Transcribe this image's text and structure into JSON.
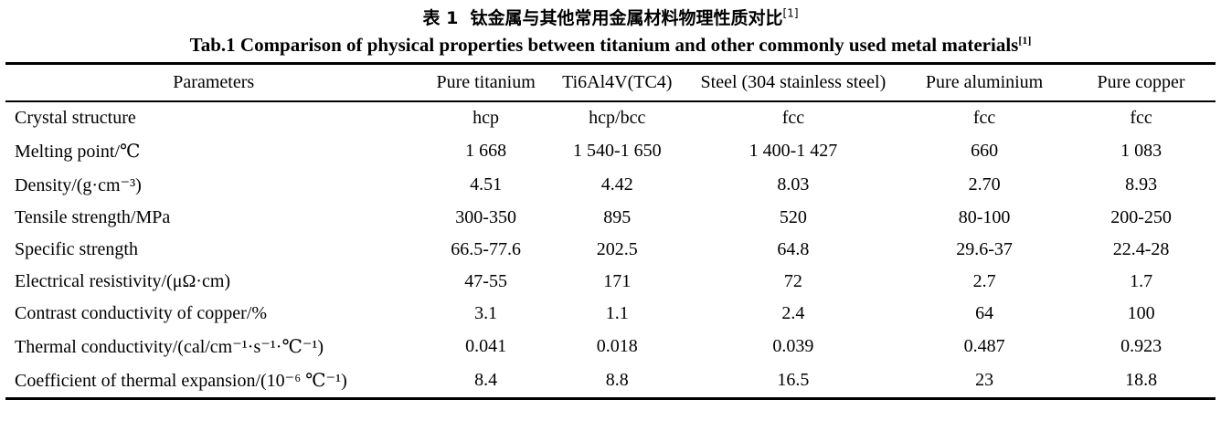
{
  "caption": {
    "zh": "表 1  钛金属与其他常用金属材料物理性质对比",
    "zh_ref": "[1]",
    "en": "Tab.1 Comparison of physical properties between titanium and other commonly used metal materials",
    "en_ref": "[1]"
  },
  "table": {
    "columns": [
      "Parameters",
      "Pure titanium",
      "Ti6Al4V(TC4)",
      "Steel (304 stainless steel)",
      "Pure aluminium",
      "Pure copper"
    ],
    "rows": [
      {
        "parameter": "Crystal structure",
        "values": [
          "hcp",
          "hcp/bcc",
          "fcc",
          "fcc",
          "fcc"
        ]
      },
      {
        "parameter": "Melting point/℃",
        "values": [
          "1 668",
          "1 540-1 650",
          "1 400-1 427",
          "660",
          "1 083"
        ]
      },
      {
        "parameter": "Density/(g·cm⁻³)",
        "values": [
          "4.51",
          "4.42",
          "8.03",
          "2.70",
          "8.93"
        ]
      },
      {
        "parameter": "Tensile strength/MPa",
        "values": [
          "300-350",
          "895",
          "520",
          "80-100",
          "200-250"
        ]
      },
      {
        "parameter": "Specific strength",
        "values": [
          "66.5-77.6",
          "202.5",
          "64.8",
          "29.6-37",
          "22.4-28"
        ]
      },
      {
        "parameter": "Electrical resistivity/(μΩ·cm)",
        "values": [
          "47-55",
          "171",
          "72",
          "2.7",
          "1.7"
        ]
      },
      {
        "parameter": "Contrast conductivity of copper/%",
        "values": [
          "3.1",
          "1.1",
          "2.4",
          "64",
          "100"
        ]
      },
      {
        "parameter": "Thermal conductivity/(cal/cm⁻¹·s⁻¹·℃⁻¹)",
        "values": [
          "0.041",
          "0.018",
          "0.039",
          "0.487",
          "0.923"
        ]
      },
      {
        "parameter": "Coefficient of thermal expansion/(10⁻⁶ ℃⁻¹)",
        "values": [
          "8.4",
          "8.8",
          "16.5",
          "23",
          "18.8"
        ]
      }
    ]
  }
}
